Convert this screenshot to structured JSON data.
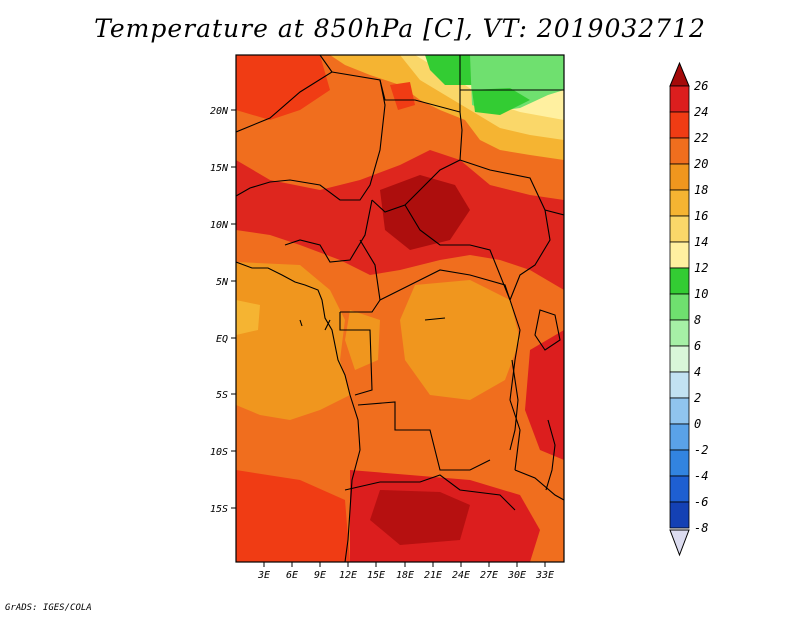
{
  "title": "Temperature at 850hPa [C], VT: 2019032712",
  "credit": "GrADS: IGES/COLA",
  "lat_labels": [
    "20N",
    "15N",
    "10N",
    "5N",
    "EQ",
    "5S",
    "10S",
    "15S"
  ],
  "lon_labels": [
    "3E",
    "6E",
    "9E",
    "12E",
    "15E",
    "18E",
    "21E",
    "24E",
    "27E",
    "30E",
    "33E"
  ],
  "colorbar": {
    "labels": [
      "26",
      "24",
      "22",
      "20",
      "18",
      "16",
      "14",
      "12",
      "10",
      "8",
      "6",
      "4",
      "2",
      "0",
      "-2",
      "-4",
      "-6",
      "-8"
    ],
    "colors": [
      "#a50a0a",
      "#dc1e1e",
      "#f03c14",
      "#f06e1e",
      "#f0961e",
      "#f5b432",
      "#fad769",
      "#fff0a0",
      "#33cc33",
      "#6fe06f",
      "#a6f0a6",
      "#d9f7d9",
      "#c2e2f2",
      "#90c4ee",
      "#5aa2e8",
      "#3284e0",
      "#1e5fd2",
      "#1441b4",
      "#0a1e78",
      "#dcdcf0"
    ]
  },
  "icons": [
    "triangle-up-icon",
    "triangle-down-icon"
  ]
}
